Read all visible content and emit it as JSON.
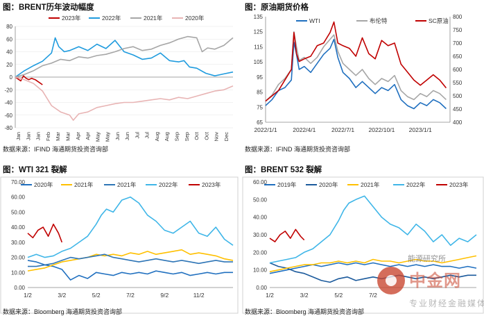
{
  "chart_data": [
    {
      "id": "c1",
      "type": "line",
      "title": "图：BRENT历年波动幅度",
      "source": "数据来源：IFIND   海通期货投资咨询部",
      "xlabel": "",
      "ylabel": "",
      "ylim": [
        -80,
        80
      ],
      "y_ticks": [
        -80,
        -60,
        -40,
        -20,
        0,
        20,
        40,
        60,
        80
      ],
      "x_tick_labels": [
        "Jan",
        "Jan",
        "Jan",
        "Feb",
        "Mar",
        "Mar",
        "Apr",
        "Apr",
        "May",
        "May",
        "Jun",
        "Jun",
        "Jul",
        "Jul",
        "Aug",
        "Aug",
        "Sep",
        "Sep",
        "Oct",
        "Oct",
        "Nov",
        "Dec"
      ],
      "x_range": [
        0,
        12
      ],
      "legend_position": "top",
      "series": [
        {
          "name": "2023年",
          "color": "#c00000",
          "x": [
            0,
            0.15,
            0.3,
            0.45,
            0.6,
            0.75,
            0.9,
            1.1,
            1.3,
            1.5
          ],
          "y": [
            0,
            -3,
            -6,
            2,
            -2,
            -4,
            -2,
            -4,
            -8,
            -12
          ]
        },
        {
          "name": "2022年",
          "color": "#1f9bde",
          "x": [
            0,
            0.5,
            1,
            1.5,
            2,
            2.2,
            2.4,
            2.7,
            3,
            3.5,
            4,
            4.5,
            5,
            5.5,
            6,
            6.5,
            7,
            7.5,
            8,
            8.5,
            9,
            9.3,
            9.6,
            10,
            10.5,
            11,
            11.5,
            12
          ],
          "y": [
            0,
            10,
            18,
            25,
            38,
            62,
            48,
            40,
            42,
            48,
            42,
            52,
            45,
            58,
            40,
            35,
            28,
            30,
            38,
            26,
            24,
            26,
            16,
            14,
            6,
            2,
            5,
            8
          ]
        },
        {
          "name": "2021年",
          "color": "#a6a6a6",
          "x": [
            0,
            0.5,
            1,
            1.5,
            2,
            2.5,
            3,
            3.5,
            4,
            4.5,
            5,
            5.5,
            6,
            6.5,
            7,
            7.5,
            8,
            8.5,
            9,
            9.5,
            10,
            10.3,
            10.6,
            11,
            11.5,
            12
          ],
          "y": [
            0,
            4,
            10,
            18,
            22,
            28,
            26,
            32,
            30,
            34,
            36,
            40,
            45,
            48,
            42,
            44,
            50,
            54,
            60,
            64,
            62,
            40,
            46,
            44,
            50,
            62
          ]
        },
        {
          "name": "2020年",
          "color": "#e8b4b4",
          "x": [
            0,
            0.5,
            1,
            1.5,
            2,
            2.5,
            3,
            3.2,
            3.5,
            4,
            4.5,
            5,
            5.5,
            6,
            6.5,
            7,
            7.5,
            8,
            8.5,
            9,
            9.5,
            10,
            10.5,
            11,
            11.5,
            12
          ],
          "y": [
            0,
            -4,
            -10,
            -22,
            -45,
            -55,
            -60,
            -68,
            -58,
            -55,
            -48,
            -45,
            -42,
            -40,
            -40,
            -38,
            -36,
            -34,
            -36,
            -32,
            -34,
            -30,
            -26,
            -22,
            -20,
            -14
          ]
        }
      ]
    },
    {
      "id": "c2",
      "type": "line",
      "title": "图：原油期货价格",
      "source": "数据来源：IFIND   海通期货投资咨询部",
      "ylim_left": [
        65,
        135
      ],
      "y_ticks_left": [
        65,
        75,
        85,
        95,
        105,
        115,
        125,
        135
      ],
      "ylim_right": [
        400,
        800
      ],
      "y_ticks_right": [
        400,
        450,
        500,
        550,
        600,
        650,
        700,
        750,
        800
      ],
      "x_tick_labels": [
        "2022/1/1",
        "2022/4/1",
        "2022/7/1",
        "2022/10/1",
        "2023/1/1"
      ],
      "x_range": [
        0,
        14.3
      ],
      "x_ticks": [
        0,
        3,
        6,
        9,
        12
      ],
      "legend_position": "top",
      "series": [
        {
          "name": "WTI",
          "color": "#1f6fbf",
          "axis": "left",
          "x": [
            0,
            0.5,
            1,
            1.5,
            2,
            2.2,
            2.4,
            2.6,
            3,
            3.5,
            4,
            4.5,
            5,
            5.3,
            5.6,
            6,
            6.5,
            7,
            7.5,
            8,
            8.5,
            9,
            9.5,
            10,
            10.5,
            11,
            11.5,
            12,
            12.5,
            13,
            13.5,
            14
          ],
          "y": [
            76,
            80,
            86,
            88,
            93,
            118,
            110,
            100,
            102,
            98,
            104,
            110,
            114,
            120,
            108,
            98,
            94,
            88,
            92,
            88,
            84,
            88,
            86,
            90,
            80,
            76,
            74,
            78,
            76,
            80,
            78,
            74
          ]
        },
        {
          "name": "布伦特",
          "color": "#a6a6a6",
          "axis": "left",
          "x": [
            0,
            0.5,
            1,
            1.5,
            2,
            2.2,
            2.4,
            2.6,
            3,
            3.5,
            4,
            4.5,
            5,
            5.3,
            5.6,
            6,
            6.5,
            7,
            7.5,
            8,
            8.5,
            9,
            9.5,
            10,
            10.5,
            11,
            11.5,
            12,
            12.5,
            13,
            13.5,
            14
          ],
          "y": [
            79,
            83,
            90,
            94,
            100,
            125,
            115,
            106,
            108,
            104,
            108,
            115,
            120,
            123,
            112,
            104,
            100,
            96,
            100,
            94,
            90,
            94,
            92,
            96,
            86,
            82,
            80,
            84,
            82,
            86,
            84,
            80
          ]
        },
        {
          "name": "SC原油",
          "color": "#c00000",
          "axis": "right",
          "x": [
            0,
            0.5,
            1,
            1.5,
            2,
            2.2,
            2.4,
            2.6,
            3,
            3.5,
            4,
            4.5,
            5,
            5.3,
            5.6,
            6,
            6.5,
            7,
            7.5,
            8,
            8.5,
            9,
            9.5,
            10,
            10.5,
            11,
            11.5,
            12,
            12.5,
            13,
            13.5,
            14
          ],
          "y": [
            480,
            500,
            520,
            560,
            600,
            740,
            660,
            630,
            640,
            650,
            690,
            700,
            740,
            780,
            700,
            690,
            680,
            650,
            720,
            660,
            640,
            710,
            690,
            700,
            620,
            590,
            560,
            540,
            560,
            580,
            560,
            530
          ]
        }
      ]
    },
    {
      "id": "c3",
      "type": "line",
      "title": "图：WTI 321 裂解",
      "source": "数据来源：Bloomberg   海通期货投资咨询部",
      "ylim": [
        0,
        70
      ],
      "y_ticks": [
        0,
        10,
        20,
        30,
        40,
        50,
        60,
        70
      ],
      "y_tick_labels": [
        "0.00",
        "10.00",
        "20.00",
        "30.00",
        "40.00",
        "50.00",
        "60.00",
        "70.00"
      ],
      "x_tick_labels": [
        "1/2",
        "3/2",
        "5/2",
        "7/2",
        "9/2",
        "11/2"
      ],
      "x_range": [
        0,
        12
      ],
      "x_ticks": [
        0,
        2,
        4,
        6,
        8,
        10
      ],
      "legend_position": "top",
      "series": [
        {
          "name": "2020年",
          "color": "#1f6fbf",
          "x": [
            0,
            0.5,
            1,
            1.5,
            2,
            2.5,
            3,
            3.5,
            4,
            4.5,
            5,
            5.5,
            6,
            6.5,
            7,
            7.5,
            8,
            8.5,
            9,
            9.5,
            10,
            10.5,
            11,
            11.5,
            12
          ],
          "y": [
            18,
            17,
            15,
            14,
            12,
            5,
            8,
            6,
            10,
            9,
            8,
            10,
            9,
            10,
            9,
            11,
            10,
            9,
            10,
            8,
            9,
            10,
            9,
            10,
            10
          ]
        },
        {
          "name": "2021年",
          "color": "#ffc000",
          "x": [
            0,
            0.5,
            1,
            1.5,
            2,
            2.5,
            3,
            3.5,
            4,
            4.5,
            5,
            5.5,
            6,
            6.5,
            7,
            7.5,
            8,
            8.5,
            9,
            9.5,
            10,
            10.5,
            11,
            11.5,
            12
          ],
          "y": [
            11,
            12,
            13,
            15,
            17,
            18,
            19,
            20,
            22,
            21,
            22,
            21,
            23,
            22,
            24,
            22,
            23,
            24,
            25,
            22,
            23,
            22,
            21,
            19,
            18
          ]
        },
        {
          "name": "2021年",
          "color": "#2e75b6",
          "x": [
            0,
            0.5,
            1,
            1.5,
            2,
            2.5,
            3,
            3.5,
            4,
            4.5,
            5,
            5.5,
            6,
            6.5,
            7,
            7.5,
            8,
            8.5,
            9,
            9.5,
            10,
            10.5,
            11,
            11.5,
            12
          ],
          "y": [
            14,
            14,
            15,
            16,
            18,
            20,
            19,
            20,
            21,
            22,
            20,
            19,
            18,
            17,
            18,
            19,
            18,
            17,
            18,
            17,
            16,
            17,
            18,
            17,
            17
          ]
        },
        {
          "name": "2022年",
          "color": "#3fb6e8",
          "x": [
            0,
            0.5,
            1,
            1.5,
            2,
            2.5,
            3,
            3.5,
            4,
            4.3,
            4.6,
            5,
            5.5,
            6,
            6.5,
            7,
            7.5,
            8,
            8.5,
            9,
            9.5,
            10,
            10.5,
            11,
            11.5,
            12
          ],
          "y": [
            20,
            22,
            20,
            21,
            24,
            26,
            30,
            34,
            42,
            48,
            52,
            50,
            58,
            60,
            56,
            48,
            44,
            38,
            36,
            40,
            44,
            36,
            34,
            40,
            32,
            28
          ]
        },
        {
          "name": "2023年",
          "color": "#c00000",
          "x": [
            0,
            0.3,
            0.6,
            0.9,
            1.2,
            1.5,
            1.8,
            2.0
          ],
          "y": [
            36,
            33,
            38,
            40,
            34,
            42,
            36,
            30
          ]
        }
      ]
    },
    {
      "id": "c4",
      "type": "line",
      "title": "图：BRENT 532 裂解",
      "source": "数据来源：Bloomberg   海通期货投资咨询部",
      "ylim": [
        0,
        60
      ],
      "y_ticks": [
        0,
        10,
        20,
        30,
        40,
        50,
        60
      ],
      "y_tick_labels": [
        "0.00",
        "10.00",
        "20.00",
        "30.00",
        "40.00",
        "50.00",
        "60.00"
      ],
      "x_tick_labels": [
        "1/2",
        "3/2",
        "5/2",
        "7/2"
      ],
      "x_range": [
        0,
        12
      ],
      "x_ticks": [
        0,
        2,
        4,
        6
      ],
      "legend_position": "top",
      "series": [
        {
          "name": "2019年",
          "color": "#1f6fbf",
          "x": [
            0,
            0.5,
            1,
            1.5,
            2,
            2.5,
            3,
            3.5,
            4,
            4.5,
            5,
            5.5,
            6,
            6.5,
            7,
            7.5,
            8,
            8.5,
            9,
            9.5,
            10,
            10.5,
            11,
            11.5,
            12
          ],
          "y": [
            8,
            9,
            10,
            11,
            12,
            13,
            12,
            13,
            14,
            13,
            14,
            13,
            14,
            13,
            12,
            13,
            12,
            13,
            12,
            13,
            12,
            12,
            11,
            12,
            11
          ]
        },
        {
          "name": "2020年",
          "color": "#1b5a9c",
          "x": [
            0,
            0.5,
            1,
            1.5,
            2,
            2.5,
            3,
            3.5,
            4,
            4.5,
            5,
            5.5,
            6,
            6.5,
            7,
            7.5,
            8,
            8.5,
            9,
            9.5,
            10,
            10.5,
            11,
            11.5,
            12
          ],
          "y": [
            14,
            12,
            11,
            9,
            8,
            6,
            4,
            3,
            5,
            6,
            4,
            5,
            6,
            5,
            6,
            7,
            6,
            5,
            6,
            5,
            6,
            7,
            6,
            7,
            7
          ]
        },
        {
          "name": "2021年",
          "color": "#ffc000",
          "x": [
            0,
            0.5,
            1,
            1.5,
            2,
            2.5,
            3,
            3.5,
            4,
            4.5,
            5,
            5.5,
            6,
            6.5,
            7,
            7.5,
            8,
            8.5,
            9,
            9.5,
            10,
            10.5,
            11,
            11.5,
            12
          ],
          "y": [
            9,
            10,
            11,
            12,
            13,
            13,
            14,
            14,
            15,
            14,
            15,
            14,
            16,
            15,
            15,
            14,
            15,
            16,
            15,
            15,
            14,
            15,
            16,
            17,
            18
          ]
        },
        {
          "name": "2022年",
          "color": "#3fb6e8",
          "x": [
            0,
            0.5,
            1,
            1.5,
            2,
            2.5,
            3,
            3.5,
            4,
            4.3,
            4.6,
            5,
            5.5,
            6,
            6.5,
            7,
            7.5,
            8,
            8.5,
            9,
            9.5,
            10,
            10.5,
            11,
            11.5,
            12
          ],
          "y": [
            14,
            15,
            16,
            17,
            20,
            22,
            26,
            30,
            38,
            44,
            48,
            50,
            52,
            46,
            40,
            36,
            34,
            30,
            36,
            32,
            26,
            30,
            24,
            28,
            26,
            30
          ]
        },
        {
          "name": "2023年",
          "color": "#c00000",
          "x": [
            0,
            0.3,
            0.6,
            0.9,
            1.2,
            1.5,
            1.8,
            2.0
          ],
          "y": [
            28,
            26,
            30,
            32,
            28,
            33,
            29,
            27
          ]
        }
      ]
    }
  ],
  "watermark": {
    "name": "中金网",
    "sub": "能源研究所",
    "tag": "专业财经金融媒体",
    "color": "#c9452e"
  }
}
